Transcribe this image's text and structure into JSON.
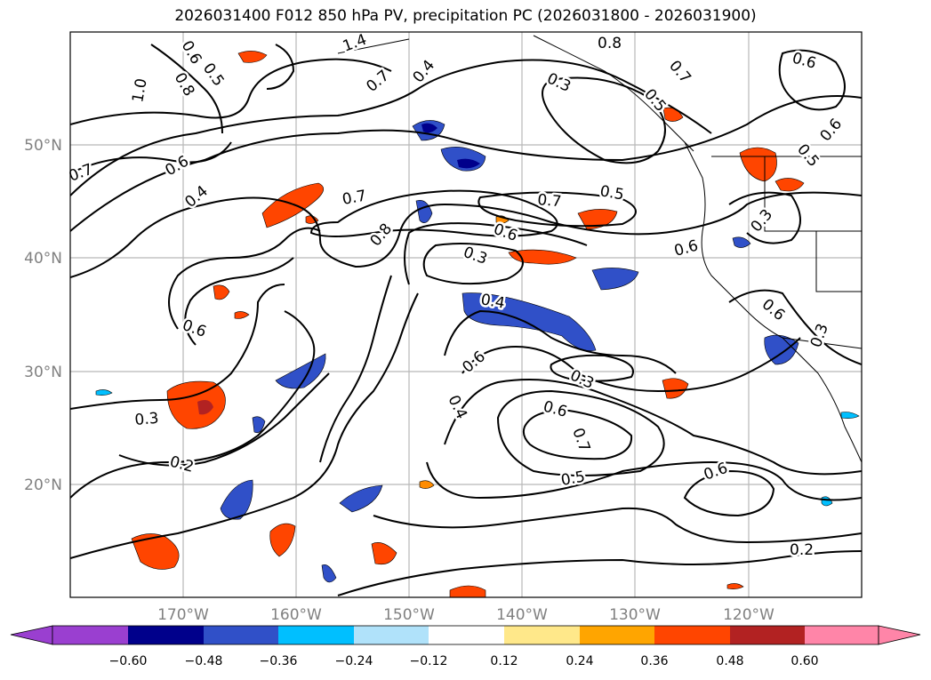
{
  "title": "2026031400 F012 850 hPa PV, precipitation PC (2026031800 - 2026031900)",
  "lat_labels": [
    "50°N",
    "40°N",
    "30°N",
    "20°N"
  ],
  "lon_labels": [
    "170°W",
    "160°W",
    "150°W",
    "140°W",
    "130°W",
    "120°W"
  ],
  "colorbar": {
    "tick_labels": [
      "−0.60",
      "−0.48",
      "−0.36",
      "−0.24",
      "−0.12",
      "0.12",
      "0.24",
      "0.36",
      "0.48",
      "0.60"
    ],
    "colors": [
      "#9a3fd0",
      "#00008b",
      "#3050c8",
      "#00bfff",
      "#b0e2fa",
      "#ffffff",
      "#ffe88a",
      "#ffa500",
      "#ff4500",
      "#b22222",
      "#ff85a8"
    ]
  },
  "contour_labels": [
    "0.5",
    "0.6",
    "0.8",
    "1.0",
    "1.4",
    "0.7",
    "0.4",
    "0.8",
    "0.3",
    "0.5",
    "0.7",
    "0.6",
    "0.6",
    "0.5",
    "0.7",
    "0.6",
    "0.4",
    "0.7",
    "0.8",
    "0.6",
    "0.5",
    "0.3",
    "0.3",
    "0.6",
    "0.7",
    "0.4",
    "0.6",
    "0.3",
    "0.6",
    "0.4",
    "0.3",
    "0.6",
    "0.7",
    "0.5",
    "0.6",
    "0.3",
    "0.2",
    "0.2",
    "0.6"
  ]
}
